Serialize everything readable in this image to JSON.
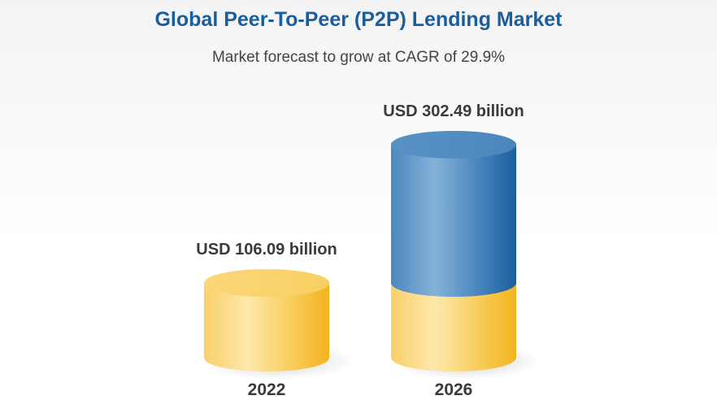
{
  "title": "Global Peer-To-Peer (P2P) Lending Market",
  "subtitle": "Market forecast to grow at CAGR of 29.9%",
  "colors": {
    "title": "#1a5e9c",
    "subtitle": "#444444",
    "base_segment": "#f6c343",
    "growth_segment": "#3f7fb9",
    "label": "#3a3a3a"
  },
  "chart_data": {
    "type": "bar",
    "style": "3d-cylinder",
    "categories": [
      "2022",
      "2026"
    ],
    "values": [
      106.09,
      302.49
    ],
    "data_labels": [
      "USD 106.09 billion",
      "USD 302.49 billion"
    ],
    "stacked_segments": [
      {
        "name": "",
        "color": "#f6c343",
        "values": [
          106.09,
          106.09
        ]
      },
      {
        "name": "",
        "color": "#3f7fb9",
        "values": [
          0,
          196.4
        ]
      }
    ],
    "title": "Global Peer-To-Peer (P2P) Lending Market",
    "subtitle": "Market forecast to grow at CAGR of 29.9%",
    "xlabel": "",
    "ylabel": "",
    "ylim": [
      0,
      302.49
    ],
    "grid": false,
    "legend": "none"
  }
}
